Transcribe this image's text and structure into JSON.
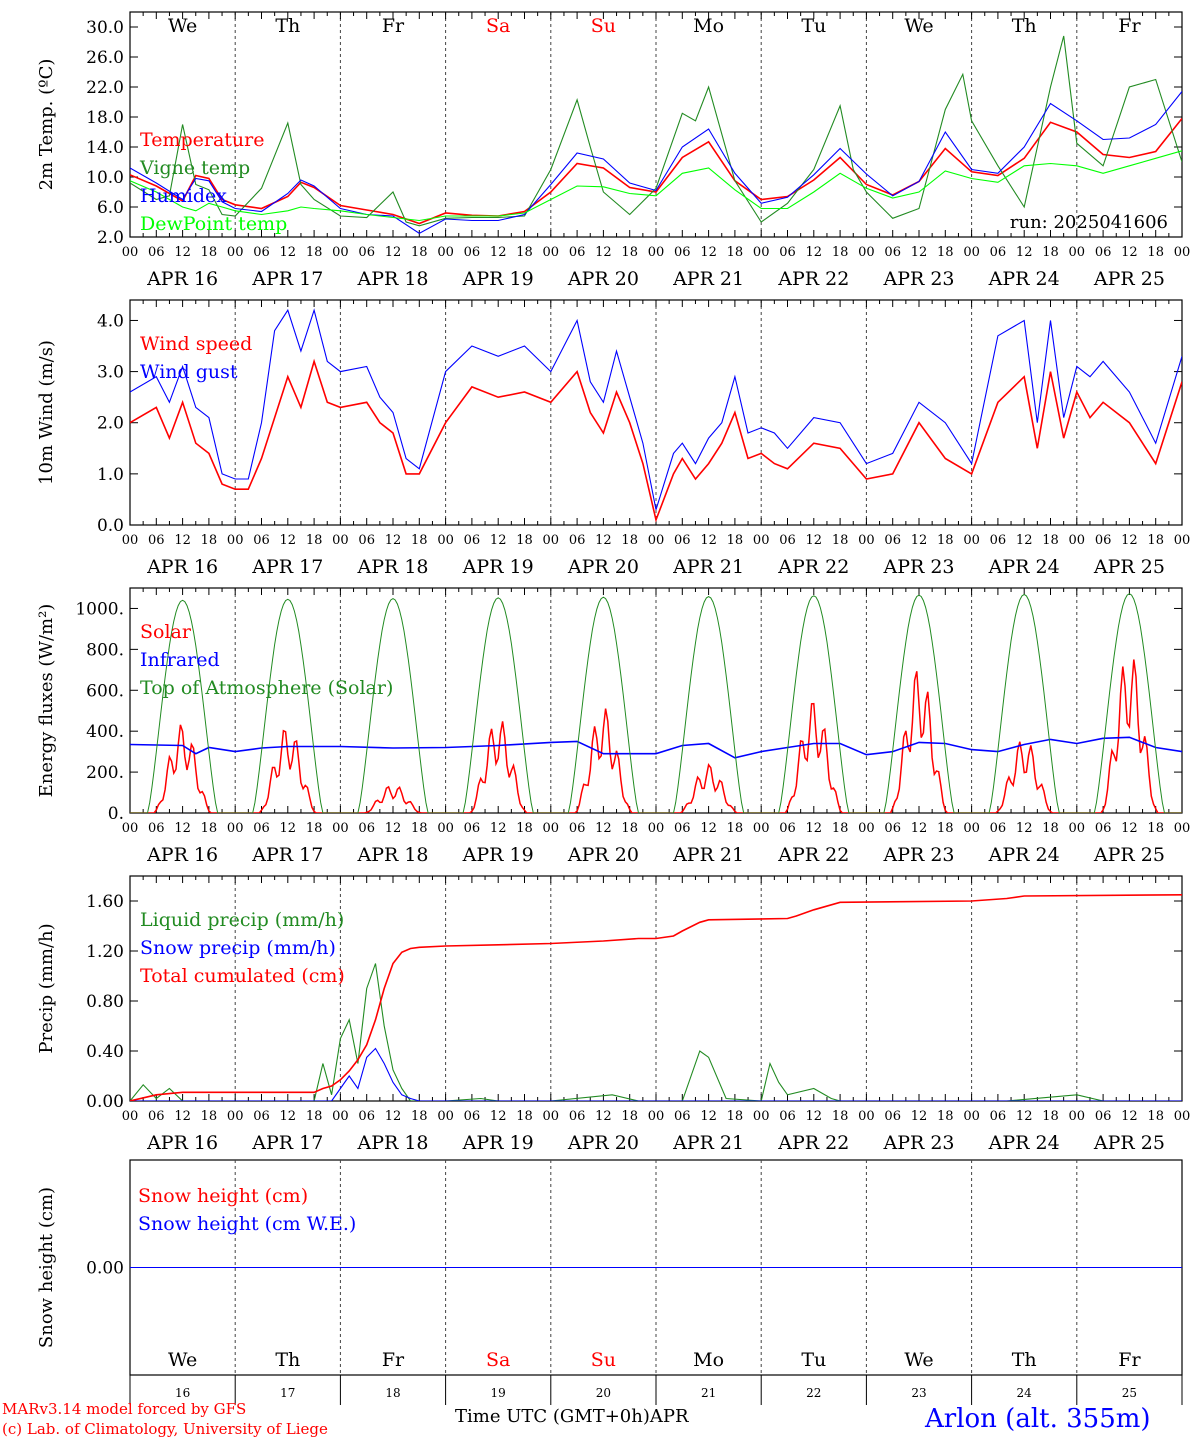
{
  "colors": {
    "red": "#ff0000",
    "green": "#228b22",
    "blue": "#0000ff",
    "lightgreen": "#00ff00",
    "axis": "#000000"
  },
  "weekdays": [
    {
      "label": "We",
      "color": "#000000"
    },
    {
      "label": "Th",
      "color": "#000000"
    },
    {
      "label": "Fr",
      "color": "#000000"
    },
    {
      "label": "Sa",
      "color": "#ff0000"
    },
    {
      "label": "Su",
      "color": "#ff0000"
    },
    {
      "label": "Mo",
      "color": "#000000"
    },
    {
      "label": "Tu",
      "color": "#000000"
    },
    {
      "label": "We",
      "color": "#000000"
    },
    {
      "label": "Th",
      "color": "#000000"
    },
    {
      "label": "Fr",
      "color": "#000000"
    }
  ],
  "day_labels": [
    "APR 16",
    "APR 17",
    "APR 18",
    "APR 19",
    "APR 20",
    "APR 21",
    "APR 22",
    "APR 23",
    "APR 24",
    "APR 25"
  ],
  "day_numbers": [
    "16",
    "17",
    "18",
    "19",
    "20",
    "21",
    "22",
    "23",
    "24",
    "25"
  ],
  "hour_ticks": [
    "00",
    "06",
    "12",
    "18"
  ],
  "footer": {
    "model": "MARv3.14 model forced by GFS",
    "copyright": "(c) Lab. of Climatology, University of Liege",
    "xlabel": "Time UTC (GMT+0h)",
    "month": "APR",
    "station": "Arlon (alt. 355m)"
  },
  "chart_data": [
    {
      "type": "line",
      "ylabel": "2m Temp. (ºC)",
      "run_label": "run: 2025041606",
      "ylim": [
        2,
        32
      ],
      "yticks": [
        "2.0",
        "6.0",
        "10.0",
        "14.0",
        "18.0",
        "22.0",
        "26.0",
        "30.0"
      ],
      "x_unit": "hours since APR 16 00 UTC",
      "series": [
        {
          "name": "Temperature",
          "color": "#ff0000",
          "x": [
            0,
            6,
            12,
            15,
            18,
            21,
            24,
            30,
            36,
            39,
            42,
            48,
            54,
            60,
            66,
            72,
            78,
            84,
            90,
            96,
            102,
            108,
            114,
            120,
            126,
            132,
            138,
            144,
            150,
            156,
            162,
            168,
            174,
            180,
            186,
            192,
            198,
            204,
            210,
            216,
            222,
            228,
            234,
            240
          ],
          "y": [
            10.3,
            8.8,
            6.8,
            10.2,
            9.8,
            7.0,
            6.3,
            5.8,
            7.4,
            9.3,
            8.6,
            6.2,
            5.6,
            5.0,
            3.8,
            5.2,
            4.9,
            4.8,
            5.4,
            8.0,
            11.8,
            11.2,
            8.6,
            8.0,
            12.6,
            14.7,
            9.5,
            7.0,
            7.4,
            9.6,
            12.6,
            9.0,
            7.6,
            9.4,
            13.8,
            10.7,
            10.2,
            12.5,
            17.3,
            16.0,
            13.0,
            12.6,
            13.4,
            17.8
          ]
        },
        {
          "name": "Vigne temp",
          "color": "#228b22",
          "x": [
            0,
            6,
            9,
            12,
            15,
            18,
            21,
            24,
            30,
            36,
            39,
            42,
            48,
            54,
            60,
            63,
            66,
            72,
            78,
            84,
            90,
            96,
            102,
            105,
            108,
            114,
            120,
            126,
            129,
            132,
            138,
            144,
            150,
            156,
            162,
            165,
            168,
            174,
            180,
            186,
            190,
            192,
            198,
            204,
            210,
            213,
            216,
            222,
            228,
            234,
            240
          ],
          "y": [
            9.2,
            7.0,
            7.5,
            17.0,
            9.0,
            8.3,
            5.0,
            4.8,
            8.5,
            17.2,
            9.0,
            7.0,
            4.8,
            4.6,
            8.0,
            4.0,
            3.5,
            4.5,
            4.6,
            4.6,
            4.8,
            11.0,
            20.3,
            14.0,
            8.0,
            5.0,
            8.5,
            18.5,
            17.5,
            22.0,
            9.5,
            4.0,
            6.5,
            11.0,
            19.5,
            11.0,
            8.0,
            4.5,
            5.8,
            19.0,
            23.7,
            17.5,
            11.5,
            6.0,
            22.0,
            28.8,
            14.5,
            11.5,
            22.0,
            23.0,
            12.0
          ]
        },
        {
          "name": "Humidex",
          "color": "#0000ff",
          "x": [
            0,
            6,
            12,
            15,
            18,
            21,
            24,
            30,
            36,
            39,
            42,
            48,
            54,
            60,
            66,
            72,
            78,
            84,
            90,
            96,
            102,
            108,
            114,
            120,
            126,
            132,
            138,
            144,
            150,
            156,
            162,
            168,
            174,
            180,
            186,
            192,
            198,
            204,
            210,
            216,
            222,
            228,
            234,
            240
          ],
          "y": [
            11.2,
            9.2,
            7.0,
            9.8,
            9.5,
            6.7,
            5.8,
            5.4,
            7.8,
            9.6,
            8.8,
            5.8,
            5.0,
            4.8,
            2.5,
            4.4,
            4.2,
            4.2,
            5.0,
            9.0,
            13.2,
            12.4,
            9.2,
            8.2,
            14.0,
            16.4,
            10.5,
            6.5,
            7.3,
            10.3,
            13.8,
            10.4,
            7.5,
            9.4,
            16.0,
            11.0,
            10.5,
            14.0,
            19.8,
            17.5,
            15.0,
            15.2,
            17.0,
            21.4
          ]
        },
        {
          "name": "DewPoint temp",
          "color": "#00ff00",
          "x": [
            0,
            6,
            12,
            15,
            18,
            21,
            24,
            30,
            36,
            39,
            42,
            48,
            54,
            60,
            66,
            72,
            78,
            84,
            90,
            96,
            102,
            108,
            114,
            120,
            126,
            132,
            138,
            144,
            150,
            156,
            162,
            168,
            174,
            180,
            186,
            192,
            198,
            204,
            210,
            216,
            222,
            228,
            234,
            240
          ],
          "y": [
            9.5,
            8.0,
            6.0,
            5.5,
            6.5,
            6.0,
            5.5,
            5.0,
            5.5,
            6.0,
            5.8,
            5.5,
            5.0,
            4.6,
            4.2,
            4.8,
            4.8,
            4.8,
            5.2,
            7.0,
            8.8,
            8.7,
            7.8,
            7.5,
            10.5,
            11.2,
            8.3,
            5.8,
            5.8,
            8.0,
            10.5,
            8.5,
            7.2,
            8.0,
            10.8,
            9.8,
            9.3,
            11.5,
            11.8,
            11.5,
            10.5,
            11.5,
            12.5,
            13.5
          ]
        }
      ]
    },
    {
      "type": "line",
      "ylabel": "10m Wind (m/s)",
      "ylim": [
        0,
        4.4
      ],
      "yticks": [
        "0.0",
        "1.0",
        "2.0",
        "3.0",
        "4.0"
      ],
      "x_unit": "hours since APR 16 00 UTC",
      "series": [
        {
          "name": "Wind speed",
          "color": "#ff0000",
          "x": [
            0,
            6,
            9,
            12,
            15,
            18,
            21,
            24,
            27,
            30,
            36,
            39,
            42,
            45,
            48,
            54,
            57,
            60,
            63,
            66,
            72,
            78,
            84,
            90,
            96,
            102,
            105,
            108,
            111,
            114,
            117,
            120,
            124,
            126,
            129,
            132,
            135,
            138,
            141,
            144,
            147,
            150,
            156,
            162,
            168,
            174,
            180,
            186,
            192,
            198,
            204,
            207,
            210,
            213,
            216,
            219,
            222,
            228,
            234,
            240
          ],
          "y": [
            2.0,
            2.3,
            1.7,
            2.4,
            1.6,
            1.4,
            0.8,
            0.7,
            0.7,
            1.3,
            2.9,
            2.3,
            3.2,
            2.4,
            2.3,
            2.4,
            2.0,
            1.8,
            1.0,
            1.0,
            2.0,
            2.7,
            2.5,
            2.6,
            2.4,
            3.0,
            2.2,
            1.8,
            2.6,
            2.0,
            1.2,
            0.1,
            1.0,
            1.3,
            0.9,
            1.2,
            1.6,
            2.2,
            1.3,
            1.4,
            1.2,
            1.1,
            1.6,
            1.5,
            0.9,
            1.0,
            2.0,
            1.3,
            1.0,
            2.4,
            2.9,
            1.5,
            3.0,
            1.7,
            2.6,
            2.1,
            2.4,
            2.0,
            1.2,
            2.8
          ]
        },
        {
          "name": "Wind gust",
          "color": "#0000ff",
          "x": [
            0,
            6,
            9,
            12,
            15,
            18,
            21,
            24,
            27,
            30,
            33,
            36,
            39,
            42,
            45,
            48,
            54,
            57,
            60,
            63,
            66,
            72,
            78,
            84,
            90,
            96,
            102,
            105,
            108,
            111,
            114,
            117,
            120,
            124,
            126,
            129,
            132,
            135,
            138,
            141,
            144,
            147,
            150,
            156,
            162,
            168,
            174,
            180,
            186,
            192,
            198,
            204,
            207,
            210,
            213,
            216,
            219,
            222,
            228,
            234,
            240
          ],
          "y": [
            2.6,
            2.9,
            2.4,
            3.1,
            2.3,
            2.1,
            1.0,
            0.9,
            0.9,
            2.0,
            3.8,
            4.2,
            3.4,
            4.2,
            3.2,
            3.0,
            3.1,
            2.5,
            2.2,
            1.3,
            1.1,
            3.0,
            3.5,
            3.3,
            3.5,
            3.0,
            4.0,
            2.8,
            2.4,
            3.4,
            2.5,
            1.6,
            0.3,
            1.4,
            1.6,
            1.2,
            1.7,
            2.0,
            2.9,
            1.8,
            1.9,
            1.8,
            1.5,
            2.1,
            2.0,
            1.2,
            1.4,
            2.4,
            2.0,
            1.2,
            3.7,
            4.0,
            2.0,
            4.0,
            2.1,
            3.1,
            2.9,
            3.2,
            2.6,
            1.6,
            3.3
          ]
        }
      ]
    },
    {
      "type": "line",
      "ylabel": "Energy fluxes (W/m²)",
      "ylim": [
        0,
        1100
      ],
      "yticks": [
        "0.",
        "200.",
        "400.",
        "600.",
        "800.",
        "1000."
      ],
      "x_unit": "hours since APR 16 00 UTC",
      "series": [
        {
          "name": "Solar",
          "color": "#ff0000",
          "daily_peak": [
            440,
            430,
            140,
            470,
            520,
            240,
            560,
            720,
            370,
            800
          ]
        },
        {
          "name": "Infrared",
          "color": "#0000ff",
          "x": [
            0,
            12,
            15,
            18,
            24,
            30,
            36,
            48,
            60,
            72,
            84,
            96,
            102,
            108,
            114,
            120,
            126,
            132,
            138,
            144,
            150,
            156,
            162,
            168,
            174,
            180,
            186,
            192,
            198,
            204,
            210,
            216,
            222,
            228,
            234,
            240
          ],
          "y": [
            335,
            330,
            290,
            320,
            300,
            318,
            325,
            325,
            318,
            320,
            330,
            345,
            350,
            290,
            290,
            290,
            330,
            340,
            270,
            300,
            320,
            340,
            340,
            285,
            300,
            345,
            340,
            310,
            300,
            335,
            360,
            340,
            365,
            370,
            320,
            300
          ]
        },
        {
          "name": "Top of Atmosphere (Solar)",
          "color": "#228b22",
          "daily_peak": [
            1040,
            1045,
            1048,
            1052,
            1055,
            1058,
            1062,
            1065,
            1068,
            1072
          ]
        }
      ]
    },
    {
      "type": "line",
      "ylabel": "Precip (mm/h)",
      "ylim": [
        0,
        1.8
      ],
      "yticks": [
        "0.00",
        "0.40",
        "0.80",
        "1.20",
        "1.60"
      ],
      "x_unit": "hours since APR 16 00 UTC",
      "series": [
        {
          "name": "Liquid precip (mm/h)",
          "color": "#228b22",
          "x": [
            0,
            3,
            6,
            9,
            12,
            15,
            18,
            24,
            30,
            36,
            42,
            44,
            46,
            48,
            50,
            52,
            54,
            56,
            58,
            60,
            62,
            64,
            66,
            70,
            72,
            80,
            84,
            96,
            110,
            116,
            120,
            126,
            130,
            132,
            136,
            144,
            146,
            148,
            150,
            156,
            160,
            162,
            166,
            168,
            180,
            200,
            216,
            222,
            240
          ],
          "y": [
            0,
            0.13,
            0.02,
            0.1,
            0,
            0,
            0,
            0,
            0,
            0,
            0,
            0.3,
            0.05,
            0.5,
            0.65,
            0.3,
            0.9,
            1.1,
            0.6,
            0.25,
            0.1,
            0,
            0,
            0,
            0,
            0.02,
            0,
            0,
            0.05,
            0,
            0,
            0,
            0.4,
            0.35,
            0.02,
            0,
            0.3,
            0.15,
            0.05,
            0.1,
            0.02,
            0,
            0,
            0,
            0,
            0,
            0.05,
            0,
            0
          ]
        },
        {
          "name": "Snow precip (mm/h)",
          "color": "#0000ff",
          "x": [
            0,
            46,
            48,
            50,
            52,
            54,
            56,
            58,
            60,
            62,
            64,
            66,
            240
          ],
          "y": [
            0,
            0,
            0.1,
            0.2,
            0.1,
            0.35,
            0.42,
            0.3,
            0.15,
            0.05,
            0.02,
            0,
            0
          ]
        },
        {
          "name": "Total cumulated (cm)",
          "color": "#ff0000",
          "x": [
            0,
            6,
            12,
            42,
            44,
            46,
            48,
            50,
            52,
            54,
            56,
            58,
            60,
            62,
            64,
            66,
            72,
            84,
            96,
            108,
            116,
            120,
            124,
            126,
            130,
            132,
            150,
            152,
            156,
            158,
            162,
            192,
            200,
            204,
            240
          ],
          "y": [
            0,
            0.05,
            0.07,
            0.07,
            0.1,
            0.12,
            0.17,
            0.24,
            0.33,
            0.45,
            0.65,
            0.9,
            1.1,
            1.19,
            1.22,
            1.23,
            1.24,
            1.25,
            1.26,
            1.28,
            1.3,
            1.3,
            1.32,
            1.36,
            1.43,
            1.45,
            1.46,
            1.48,
            1.53,
            1.55,
            1.59,
            1.6,
            1.62,
            1.64,
            1.65
          ]
        }
      ]
    },
    {
      "type": "line",
      "ylabel": "Snow height (cm)",
      "yticks": [
        "0.00"
      ],
      "x_unit": "hours since APR 16 00 UTC",
      "series": [
        {
          "name": "Snow height (cm)",
          "color": "#ff0000",
          "x": [
            0,
            240
          ],
          "y": [
            0,
            0
          ]
        },
        {
          "name": "Snow height (cm W.E.)",
          "color": "#0000ff",
          "x": [
            0,
            240
          ],
          "y": [
            0,
            0
          ]
        }
      ]
    }
  ]
}
